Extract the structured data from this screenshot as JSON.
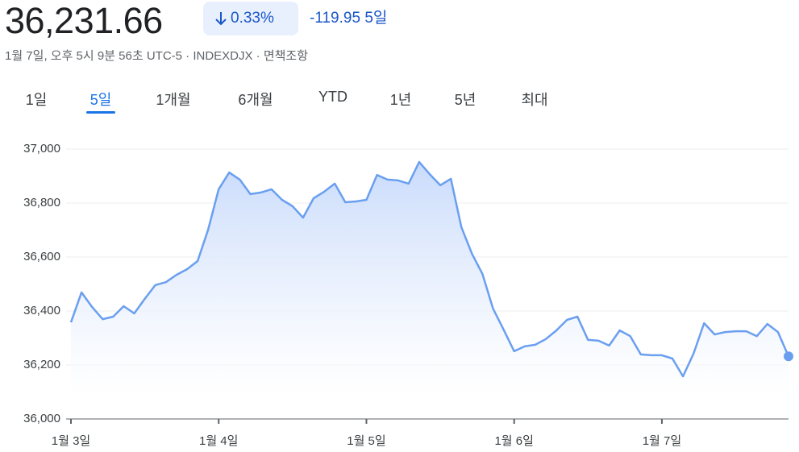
{
  "header": {
    "price": "36,231.66",
    "change_pct": "0.33%",
    "change_abs": "-119.95",
    "period": "5일",
    "subtitle": "1월 7일, 오후 5시 9분 56초 UTC-5 · INDEXDJX · 면책조항"
  },
  "tabs": [
    "1일",
    "5일",
    "1개월",
    "6개월",
    "YTD",
    "1년",
    "5년",
    "최대"
  ],
  "selected_tab": 1,
  "chart_data": {
    "type": "area",
    "color": "#6a9ff0",
    "grid": true,
    "ylim": [
      36000,
      37000
    ],
    "yticks": [
      {
        "value": 36000,
        "label": "36,000"
      },
      {
        "value": 36200,
        "label": "36,200"
      },
      {
        "value": 36400,
        "label": "36,400"
      },
      {
        "value": 36600,
        "label": "36,600"
      },
      {
        "value": 36800,
        "label": "36,800"
      },
      {
        "value": 37000,
        "label": "37,000"
      }
    ],
    "xlim": [
      0,
      68
    ],
    "xticks": [
      {
        "value": 0,
        "label": "1월 3일"
      },
      {
        "value": 14,
        "label": "1월 4일"
      },
      {
        "value": 28,
        "label": "1월 5일"
      },
      {
        "value": 42,
        "label": "1월 6일"
      },
      {
        "value": 56,
        "label": "1월 7일"
      }
    ],
    "values": [
      36358,
      36469,
      36415,
      36370,
      36379,
      36418,
      36391,
      36445,
      36496,
      36507,
      36534,
      36555,
      36585,
      36701,
      36851,
      36913,
      36887,
      36833,
      36839,
      36851,
      36812,
      36788,
      36746,
      36818,
      36842,
      36872,
      36803,
      36806,
      36812,
      36904,
      36887,
      36884,
      36872,
      36952,
      36907,
      36866,
      36890,
      36710,
      36612,
      36537,
      36409,
      36331,
      36251,
      36269,
      36275,
      36296,
      36328,
      36367,
      36379,
      36293,
      36290,
      36272,
      36328,
      36307,
      36239,
      36236,
      36236,
      36224,
      36158,
      36242,
      36355,
      36313,
      36322,
      36325,
      36325,
      36307,
      36352,
      36322,
      36232
    ]
  }
}
